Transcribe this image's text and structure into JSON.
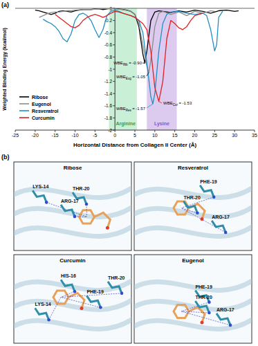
{
  "chart_data": {
    "type": "line",
    "panel_label": "(a)",
    "x_label": "Horizontal Distance from Collagen II Center (Å)",
    "y_label": "Weighted Binding Energy (kcal/mol)",
    "xlim": [
      -25,
      35
    ],
    "ylim": [
      -2,
      0
    ],
    "xticks": [
      -25,
      -20,
      -15,
      -10,
      -5,
      0,
      5,
      10,
      15,
      20,
      25,
      30,
      35
    ],
    "yticks": [
      0,
      -0.2,
      -0.4,
      -0.6,
      -0.8,
      -1,
      -1.2,
      -1.4,
      -1.6,
      -1.8,
      -2
    ],
    "grid": false,
    "legend": "lower left",
    "regions": [
      {
        "label": "Arginine",
        "x": [
          -1.5,
          5.5
        ],
        "color": "#c9efd6"
      },
      {
        "label": "Lysine",
        "x": [
          8,
          15.5
        ],
        "color": "#dccbee"
      }
    ],
    "series": [
      {
        "name": "Ribose",
        "color": "#000000",
        "x": [
          -20,
          -19,
          -18,
          -17,
          -16,
          -15,
          -14,
          -13,
          -12,
          -11,
          -10,
          -9,
          -8,
          -7,
          -6,
          -5,
          -4,
          -3,
          -2,
          -1,
          0,
          1,
          2,
          3,
          4,
          5,
          6,
          7,
          7.5,
          8,
          9,
          10,
          11,
          12,
          14,
          16,
          18,
          20,
          22,
          24,
          26,
          28,
          30,
          31
        ],
        "values": [
          -0.03,
          -0.04,
          -0.06,
          -0.08,
          -0.1,
          -0.08,
          -0.05,
          -0.04,
          -0.05,
          -0.06,
          -0.04,
          -0.03,
          -0.02,
          -0.02,
          -0.02,
          -0.01,
          -0.01,
          -0.02,
          -0.01,
          0,
          0,
          -0.01,
          -0.02,
          -0.03,
          -0.05,
          -0.1,
          -0.3,
          -0.75,
          -0.9,
          -0.7,
          -0.2,
          -0.06,
          -0.04,
          -0.05,
          -0.07,
          -0.04,
          -0.06,
          -0.03,
          -0.05,
          -0.08,
          -0.04,
          -0.03,
          -0.05,
          -0.04
        ]
      },
      {
        "name": "Eugenol",
        "color": "#8c8c8c",
        "x": [
          -19,
          -18,
          -17,
          -16,
          -15,
          -14,
          -13,
          -12,
          -11,
          -10,
          -8,
          -6,
          -4,
          -2,
          0,
          2,
          4,
          5,
          6,
          7,
          8,
          8.5,
          9,
          10,
          11,
          12,
          14,
          16,
          18,
          20,
          22,
          24,
          25
        ],
        "values": [
          -0.15,
          -0.12,
          -0.09,
          -0.07,
          -0.06,
          -0.06,
          -0.05,
          -0.04,
          -0.04,
          -0.03,
          -0.02,
          -0.02,
          -0.01,
          0,
          -0.01,
          -0.02,
          -0.05,
          -0.1,
          -0.25,
          -0.6,
          -0.95,
          -1.05,
          -0.85,
          -0.3,
          -0.08,
          -0.05,
          -0.1,
          -0.06,
          -0.12,
          -0.05,
          -0.08,
          -0.04,
          -0.05
        ]
      },
      {
        "name": "Resveratrol",
        "color": "#1f8fc4",
        "x": [
          -18,
          -17,
          -16,
          -15,
          -14,
          -13,
          -12,
          -11,
          -10,
          -9,
          -8,
          -7,
          -6,
          -5,
          -4,
          -3,
          -2,
          -1,
          0,
          1,
          2,
          3,
          4,
          5,
          6,
          7,
          8,
          9,
          9.5,
          10,
          11,
          12,
          13,
          14,
          16,
          18,
          20,
          22,
          23,
          24,
          25,
          25.5,
          26,
          27
        ],
        "values": [
          -0.18,
          -0.22,
          -0.25,
          -0.3,
          -0.38,
          -0.5,
          -0.55,
          -0.42,
          -0.2,
          -0.1,
          -0.08,
          -0.12,
          -0.2,
          -0.35,
          -0.48,
          -0.35,
          -0.12,
          -0.05,
          -0.03,
          -0.05,
          -0.08,
          -0.1,
          -0.12,
          -0.15,
          -0.2,
          -0.4,
          -0.9,
          -1.45,
          -1.57,
          -1.4,
          -0.7,
          -0.25,
          -0.1,
          -0.06,
          -0.05,
          -0.08,
          -0.1,
          -0.08,
          -0.12,
          -0.35,
          -0.7,
          -0.6,
          -0.15,
          -0.05
        ]
      },
      {
        "name": "Curcumin",
        "color": "#e02020",
        "x": [
          -15,
          -14,
          -13,
          -12,
          -11,
          -10,
          -9,
          -8,
          -7,
          -6,
          -5,
          -4,
          -3,
          -2,
          -1,
          0,
          1,
          2,
          3,
          4,
          5,
          6,
          7,
          8,
          9,
          10,
          11,
          12,
          13,
          14,
          15,
          16,
          17,
          18,
          19,
          20,
          21,
          22
        ],
        "values": [
          -0.1,
          -0.15,
          -0.2,
          -0.25,
          -0.3,
          -0.32,
          -0.28,
          -0.2,
          -0.15,
          -0.12,
          -0.1,
          -0.12,
          -0.15,
          -0.12,
          -0.08,
          -0.05,
          -0.06,
          -0.08,
          -0.1,
          -0.12,
          -0.15,
          -0.2,
          -0.25,
          -0.35,
          -0.7,
          -1.3,
          -1.53,
          -1.2,
          -0.5,
          -0.2,
          -0.25,
          -0.32,
          -0.35,
          -0.3,
          -0.2,
          -0.12,
          -0.1,
          -0.08
        ]
      }
    ],
    "annotations": [
      {
        "label": "WBE",
        "sub": "Rib",
        "value_text": "= -0.90",
        "x": 7.5,
        "y": -0.9,
        "color": "#000000"
      },
      {
        "label": "WBE",
        "sub": "Eug",
        "value_text": "= -1.05",
        "x": 8.5,
        "y": -1.05,
        "color": "#000000"
      },
      {
        "label": "WBE",
        "sub": "Res",
        "value_text": "= -1.57",
        "x": 9.5,
        "y": -1.57,
        "color": "#1f8fc4"
      },
      {
        "label": "WBE",
        "sub": "Cur",
        "value_text": "= -1.53",
        "x": 11,
        "y": -1.53,
        "color": "#e02020"
      }
    ]
  },
  "docking": {
    "panel_label": "(b)",
    "panels": [
      {
        "title": "Ribose",
        "residues": [
          "LYS-14",
          "THR-20",
          "ARG-17"
        ]
      },
      {
        "title": "Resveratrol",
        "residues": [
          "PHE-19",
          "THR-20",
          "ARG-17"
        ]
      },
      {
        "title": "Curcumin",
        "residues": [
          "HIS-16",
          "THR-20",
          "PHE-19",
          "LYS-14"
        ]
      },
      {
        "title": "Eugenol",
        "residues": [
          "PHE-19",
          "THR-20",
          "ARG-17"
        ]
      }
    ]
  }
}
